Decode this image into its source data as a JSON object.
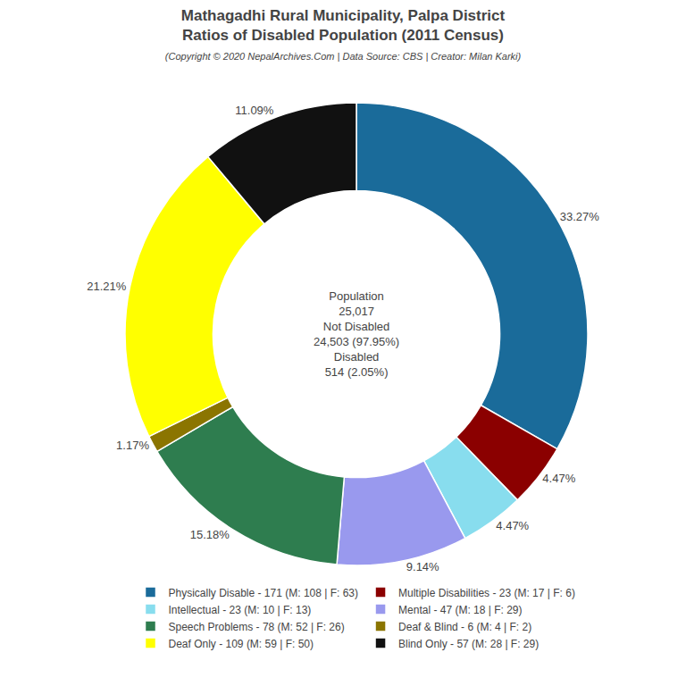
{
  "chart_data": {
    "type": "pie",
    "title": "Mathagadhi Rural Municipality, Palpa District\nRatios of Disabled Population (2011 Census)",
    "subtitle": "(Copyright © 2020 NepalArchives.Com | Data Source: CBS | Creator: Milan Karki)",
    "categories": [
      "Physically Disable - 171 (M: 108 | F: 63)",
      "Multiple Disabilities - 23 (M: 17 | F: 6)",
      "Intellectual - 23 (M: 10 | F: 13)",
      "Mental - 47 (M: 18 | F: 29)",
      "Speech Problems - 78 (M: 52 | F: 26)",
      "Deaf & Blind - 6 (M: 4 | F: 2)",
      "Deaf Only - 109 (M: 59 | F: 50)",
      "Blind Only - 57 (M: 28 | F: 29)"
    ],
    "values": [
      33.27,
      4.47,
      4.47,
      9.14,
      15.18,
      1.17,
      21.21,
      11.09
    ],
    "value_labels": [
      "33.27%",
      "4.47%",
      "4.47%",
      "9.14%",
      "15.18%",
      "1.17%",
      "21.21%",
      "11.09%"
    ],
    "colors": [
      "#1a6b9a",
      "#8b0000",
      "#88ddee",
      "#9999ee",
      "#2e7d4f",
      "#8b7500",
      "#ffff00",
      "#111111"
    ],
    "annotations": [
      "Population",
      "25,017",
      "Not Disabled",
      "24,503 (97.95%)",
      "Disabled",
      "514 (2.05%)"
    ],
    "data_labels": true,
    "legend": "bottom"
  }
}
